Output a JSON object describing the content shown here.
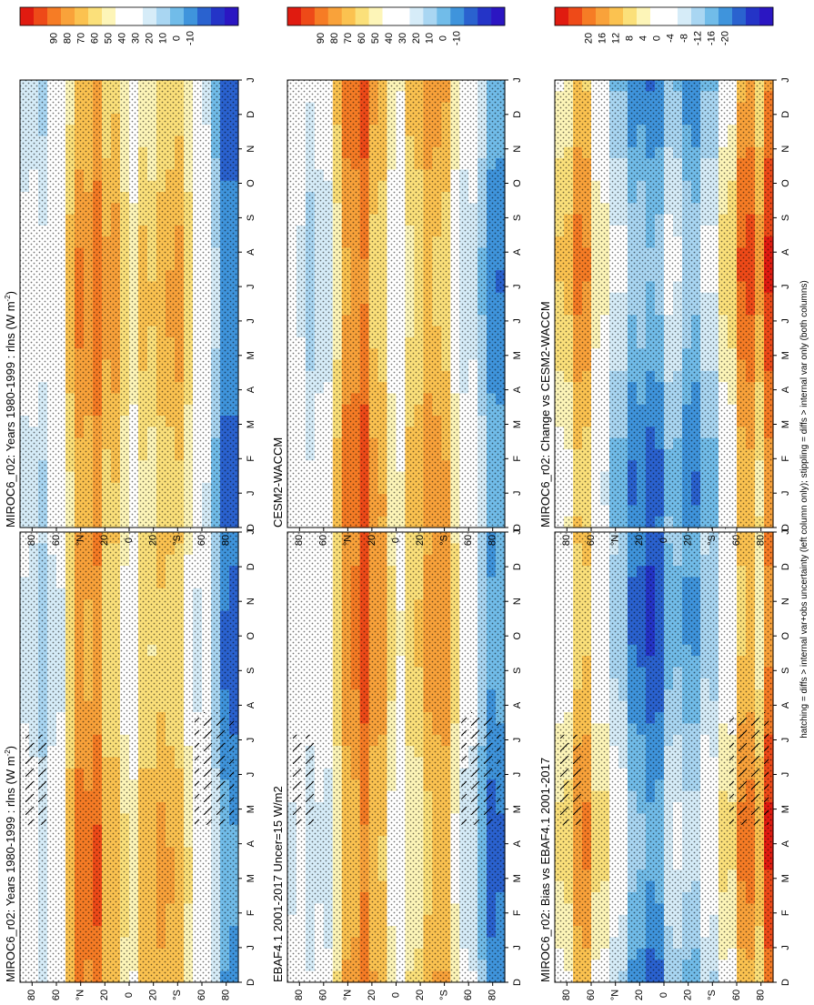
{
  "figure": {
    "footnote": "hatching = diffs > internal var+obs uncertainty (left column only); stippling = diffs > internal var only (both columns)"
  },
  "chart_data": [
    {
      "id": "p1",
      "type": "heatmap",
      "kind": "abs",
      "title": "MIROC6_r02: Years 1980-1999 : rlns (W m",
      "title_sup": "-2",
      "title_tail": ")",
      "months": [
        "D",
        "J",
        "F",
        "M",
        "A",
        "M",
        "J",
        "J",
        "A",
        "S",
        "O",
        "N",
        "D",
        "J"
      ],
      "lat_ticks": [
        "80",
        "60",
        "°N",
        "20",
        "0",
        "20",
        "°S",
        "60",
        "80"
      ],
      "stippled": true,
      "hatched": true,
      "colorbar": {
        "labels": [
          "90",
          "80",
          "70",
          "60",
          "50",
          "40",
          "30",
          "20",
          "10",
          "0",
          "-10"
        ],
        "colors": [
          "#e01b10",
          "#ee4a18",
          "#f67c25",
          "#f9a23a",
          "#fbc250",
          "#fbe07a",
          "#fdf5b8",
          "#ffffff",
          "#ffffff",
          "#d6ecf8",
          "#a9d6f2",
          "#71bce9",
          "#3f94dc",
          "#2a62cf",
          "#2434c7",
          "#2b16c2"
        ]
      }
    },
    {
      "id": "p2",
      "type": "heatmap",
      "kind": "abs",
      "title": "MIROC6_r02: Years 1980-1999 : rlns (W m",
      "title_sup": "-2",
      "title_tail": ")",
      "months": [
        "D",
        "J",
        "F",
        "M",
        "A",
        "M",
        "J",
        "J",
        "A",
        "S",
        "O",
        "N",
        "D",
        "J"
      ],
      "lat_ticks": [
        "80",
        "60",
        "°N",
        "20",
        "0",
        "20",
        "°S",
        "60",
        "80"
      ],
      "stippled": true,
      "hatched": false,
      "colorbar": {
        "labels": [
          "90",
          "80",
          "70",
          "60",
          "50",
          "40",
          "30",
          "20",
          "10",
          "0",
          "-10"
        ],
        "colors": [
          "#e01b10",
          "#ee4a18",
          "#f67c25",
          "#f9a23a",
          "#fbc250",
          "#fbe07a",
          "#fdf5b8",
          "#ffffff",
          "#ffffff",
          "#d6ecf8",
          "#a9d6f2",
          "#71bce9",
          "#3f94dc",
          "#2a62cf",
          "#2434c7",
          "#2b16c2"
        ]
      }
    },
    {
      "id": "p3",
      "type": "heatmap",
      "kind": "abs",
      "title": "EBAF4.1 2001-2017 Uncer=15 W/m2",
      "title_sup": "",
      "title_tail": "",
      "months": [
        "D",
        "J",
        "F",
        "M",
        "A",
        "M",
        "J",
        "J",
        "A",
        "S",
        "O",
        "N",
        "D",
        "J"
      ],
      "lat_ticks": [
        "80",
        "60",
        "°N",
        "20",
        "0",
        "20",
        "°S",
        "60",
        "80"
      ],
      "stippled": true,
      "hatched": true,
      "colorbar": {
        "labels": [
          "90",
          "80",
          "70",
          "60",
          "50",
          "40",
          "30",
          "20",
          "10",
          "0",
          "-10"
        ],
        "colors": [
          "#e01b10",
          "#ee4a18",
          "#f67c25",
          "#f9a23a",
          "#fbc250",
          "#fbe07a",
          "#fdf5b8",
          "#ffffff",
          "#ffffff",
          "#d6ecf8",
          "#a9d6f2",
          "#71bce9",
          "#3f94dc",
          "#2a62cf",
          "#2434c7",
          "#2b16c2"
        ]
      }
    },
    {
      "id": "p4",
      "type": "heatmap",
      "kind": "abs",
      "title": "CESM2-WACCM",
      "title_sup": "",
      "title_tail": "",
      "months": [
        "D",
        "J",
        "F",
        "M",
        "A",
        "M",
        "J",
        "J",
        "A",
        "S",
        "O",
        "N",
        "D",
        "J"
      ],
      "lat_ticks": [
        "80",
        "60",
        "°N",
        "20",
        "0",
        "20",
        "°S",
        "60",
        "80"
      ],
      "stippled": true,
      "hatched": false,
      "colorbar": {
        "labels": [
          "90",
          "80",
          "70",
          "60",
          "50",
          "40",
          "30",
          "20",
          "10",
          "0",
          "-10"
        ],
        "colors": [
          "#e01b10",
          "#ee4a18",
          "#f67c25",
          "#f9a23a",
          "#fbc250",
          "#fbe07a",
          "#fdf5b8",
          "#ffffff",
          "#ffffff",
          "#d6ecf8",
          "#a9d6f2",
          "#71bce9",
          "#3f94dc",
          "#2a62cf",
          "#2434c7",
          "#2b16c2"
        ]
      }
    },
    {
      "id": "p5",
      "type": "heatmap",
      "kind": "bias",
      "title": "MIROC6_r02: Bias vs EBAF4.1 2001-2017",
      "title_sup": "",
      "title_tail": "",
      "months": [
        "D",
        "J",
        "F",
        "M",
        "A",
        "M",
        "J",
        "J",
        "A",
        "S",
        "O",
        "N",
        "D",
        "J"
      ],
      "lat_ticks": [
        "80",
        "60",
        "°N",
        "20",
        "0",
        "20",
        "°S",
        "60",
        "80"
      ],
      "stippled": true,
      "hatched": true,
      "colorbar": {
        "labels": [
          "20",
          "16",
          "12",
          "8",
          "4",
          "0",
          "-4",
          "-8",
          "-12",
          "-16",
          "-20"
        ],
        "colors": [
          "#e01b10",
          "#ee4a18",
          "#f67c25",
          "#f9a23a",
          "#fbc250",
          "#fbe07a",
          "#fdf5b8",
          "#ffffff",
          "#ffffff",
          "#d6ecf8",
          "#a9d6f2",
          "#71bce9",
          "#3f94dc",
          "#2a62cf",
          "#2434c7",
          "#2b16c2"
        ]
      }
    },
    {
      "id": "p6",
      "type": "heatmap",
      "kind": "diff",
      "title": "MIROC6_r02: Change vs CESM2-WACCM",
      "title_sup": "",
      "title_tail": "",
      "months": [
        "D",
        "J",
        "F",
        "M",
        "A",
        "M",
        "J",
        "J",
        "A",
        "S",
        "O",
        "N",
        "D",
        "J"
      ],
      "lat_ticks": [
        "80",
        "60",
        "°N",
        "20",
        "0",
        "20",
        "°S",
        "60",
        "80"
      ],
      "stippled": true,
      "hatched": false,
      "colorbar": {
        "labels": [
          "20",
          "16",
          "12",
          "8",
          "4",
          "0",
          "-4",
          "-8",
          "-12",
          "-16",
          "-20"
        ],
        "colors": [
          "#e01b10",
          "#ee4a18",
          "#f67c25",
          "#f9a23a",
          "#fbc250",
          "#fbe07a",
          "#fdf5b8",
          "#ffffff",
          "#ffffff",
          "#d6ecf8",
          "#a9d6f2",
          "#71bce9",
          "#3f94dc",
          "#2a62cf",
          "#2434c7",
          "#2b16c2"
        ]
      }
    }
  ]
}
